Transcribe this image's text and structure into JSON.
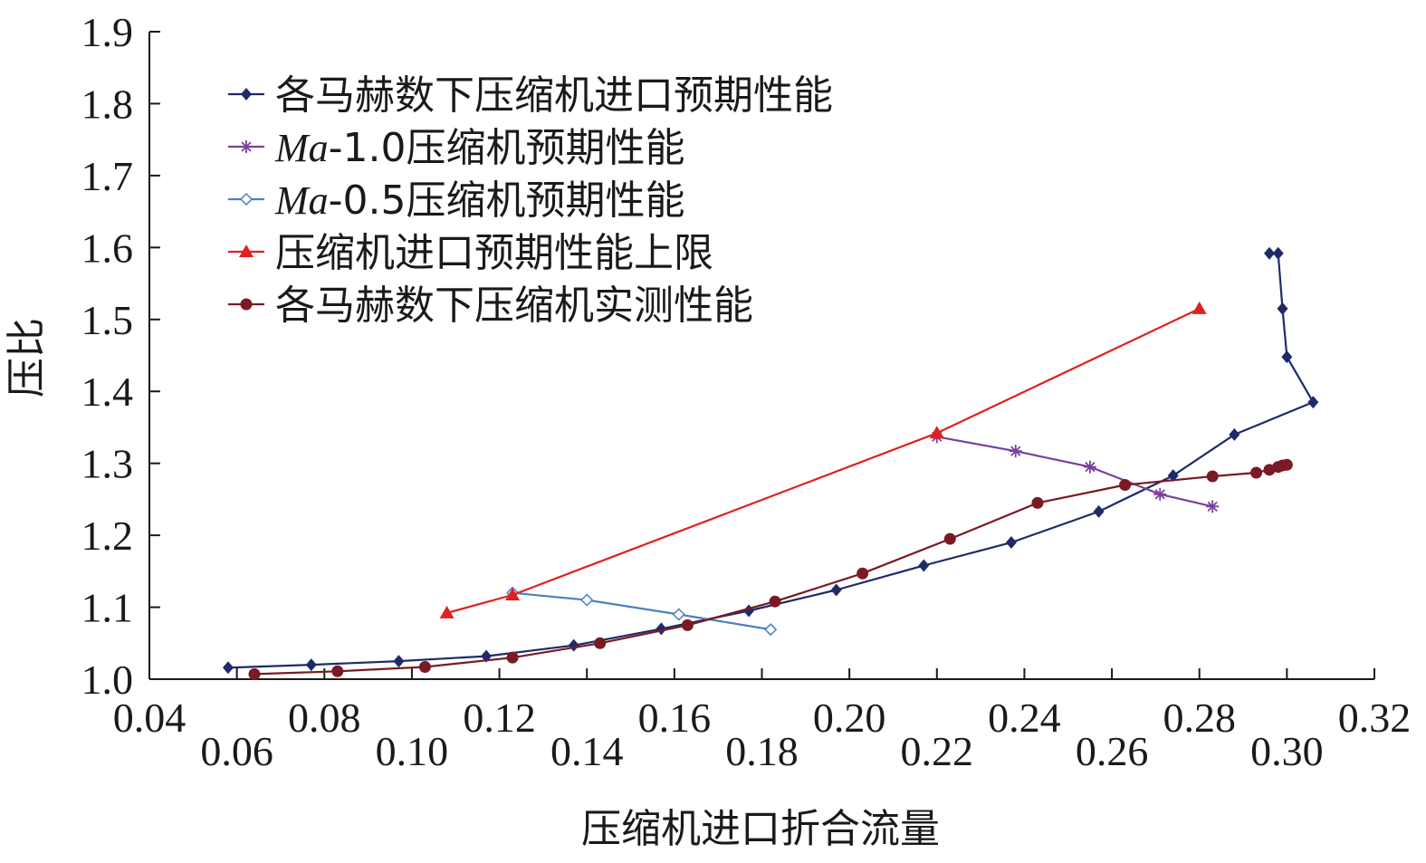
{
  "chart_data": {
    "type": "line",
    "xlabel": "压缩机进口折合流量",
    "ylabel": "压比",
    "xlim": [
      0.04,
      0.32
    ],
    "ylim": [
      1.0,
      1.9
    ],
    "grid": false,
    "legend_position": "top-left",
    "y_ticks": [
      "1.0",
      "1.1",
      "1.2",
      "1.3",
      "1.4",
      "1.5",
      "1.6",
      "1.7",
      "1.8",
      "1.9"
    ],
    "x_ticks_upper": [
      "0.04",
      "0.08",
      "0.12",
      "0.16",
      "0.20",
      "0.24",
      "0.28",
      "0.32"
    ],
    "x_ticks_lower": [
      "0.06",
      "0.10",
      "0.14",
      "0.18",
      "0.22",
      "0.26",
      "0.30"
    ],
    "series": [
      {
        "name": "各马赫数下压缩机进口预期性能",
        "color": "#1f2a6b",
        "marker": "diamond",
        "x": [
          0.058,
          0.077,
          0.097,
          0.117,
          0.137,
          0.157,
          0.177,
          0.197,
          0.217,
          0.237,
          0.257,
          0.274,
          0.288,
          0.306,
          0.3,
          0.299,
          0.298,
          0.296
        ],
        "y": [
          1.016,
          1.02,
          1.025,
          1.032,
          1.047,
          1.07,
          1.095,
          1.124,
          1.158,
          1.19,
          1.233,
          1.283,
          1.34,
          1.385,
          1.448,
          1.515,
          1.592,
          1.592
        ]
      },
      {
        "name": "Ma-1.0压缩机预期性能",
        "color": "#7b3fa0",
        "marker": "star",
        "x": [
          0.22,
          0.238,
          0.255,
          0.271,
          0.283
        ],
        "y": [
          1.337,
          1.317,
          1.295,
          1.257,
          1.24
        ]
      },
      {
        "name": "Ma-0.5压缩机预期性能",
        "color": "#4a7fc1",
        "marker": "open-diamond",
        "x": [
          0.123,
          0.14,
          0.161,
          0.182
        ],
        "y": [
          1.12,
          1.11,
          1.09,
          1.069
        ]
      },
      {
        "name": "压缩机进口预期性能上限",
        "color": "#e02020",
        "marker": "triangle",
        "x": [
          0.108,
          0.123,
          0.22,
          0.28
        ],
        "y": [
          1.092,
          1.117,
          1.342,
          1.515
        ]
      },
      {
        "name": "各马赫数下压缩机实测性能",
        "color": "#7a1a24",
        "marker": "circle",
        "x": [
          0.064,
          0.083,
          0.103,
          0.123,
          0.143,
          0.163,
          0.183,
          0.203,
          0.223,
          0.243,
          0.263,
          0.283,
          0.293,
          0.296,
          0.298,
          0.299,
          0.3
        ],
        "y": [
          1.007,
          1.011,
          1.017,
          1.03,
          1.05,
          1.075,
          1.108,
          1.147,
          1.195,
          1.245,
          1.27,
          1.282,
          1.287,
          1.291,
          1.295,
          1.297,
          1.298
        ]
      }
    ]
  }
}
